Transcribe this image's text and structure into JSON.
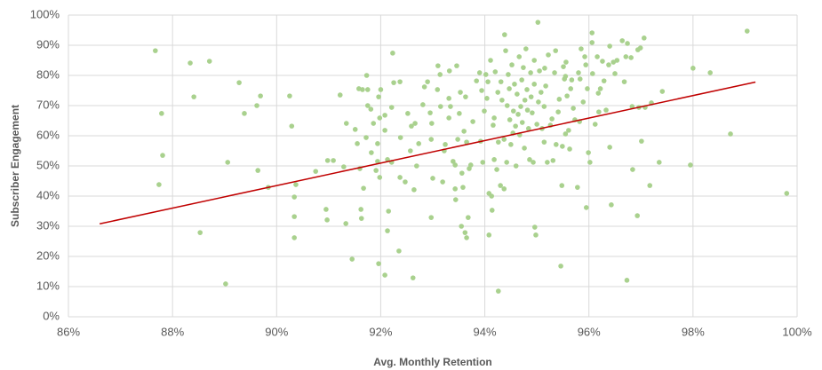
{
  "chart_data": {
    "type": "scatter",
    "x_label": "Avg. Monthly Retention",
    "y_label": "Subscriber Engagement",
    "color": "#a9d18e",
    "grid": true,
    "xlim": [
      86,
      100
    ],
    "ylim": [
      0,
      100
    ],
    "xticks": [
      {
        "value": 86,
        "label": "86%"
      },
      {
        "value": 88,
        "label": "88%"
      },
      {
        "value": 90,
        "label": "90%"
      },
      {
        "value": 92,
        "label": "92%"
      },
      {
        "value": 94,
        "label": "94%"
      },
      {
        "value": 96,
        "label": "96%"
      },
      {
        "value": 98,
        "label": "98%"
      },
      {
        "value": 100,
        "label": "100%"
      }
    ],
    "yticks": [
      {
        "value": 0,
        "label": "0%"
      },
      {
        "value": 10,
        "label": "10%"
      },
      {
        "value": 20,
        "label": "20%"
      },
      {
        "value": 30,
        "label": "30%"
      },
      {
        "value": 40,
        "label": "40%"
      },
      {
        "value": 50,
        "label": "50%"
      },
      {
        "value": 60,
        "label": "60%"
      },
      {
        "value": 70,
        "label": "70%"
      },
      {
        "value": 80,
        "label": "80%"
      },
      {
        "value": 90,
        "label": "90%"
      },
      {
        "value": 100,
        "label": "100%"
      }
    ],
    "trendline": {
      "color": "#c00000",
      "x": [
        86.6,
        99.2
      ],
      "y": [
        30.8,
        77.8
      ]
    },
    "x": [
      87.67,
      87.79,
      87.81,
      87.74,
      88.34,
      88.41,
      88.71,
      88.53,
      89.02,
      89.06,
      89.28,
      89.38,
      89.62,
      89.69,
      89.64,
      89.84,
      90.25,
      90.29,
      90.37,
      90.34,
      90.34,
      90.34,
      90.75,
      90.95,
      90.97,
      90.98,
      91.09,
      91.22,
      91.29,
      91.34,
      91.33,
      91.45,
      91.51,
      91.55,
      91.58,
      91.62,
      91.6,
      91.63,
      91.67,
      91.65,
      91.72,
      91.73,
      91.75,
      91.75,
      91.81,
      91.82,
      91.86,
      91.94,
      91.94,
      91.96,
      91.98,
      91.91,
      91.98,
      92.0,
      91.96,
      92.08,
      92.13,
      92.13,
      92.15,
      92.08,
      92.08,
      92.21,
      92.21,
      92.25,
      92.23,
      92.35,
      92.37,
      92.38,
      92.37,
      92.47,
      92.52,
      92.57,
      92.59,
      92.62,
      92.64,
      92.66,
      92.69,
      92.73,
      92.81,
      92.84,
      92.9,
      92.97,
      92.95,
      92.97,
      92.98,
      93.0,
      93.09,
      93.1,
      93.14,
      93.15,
      93.19,
      93.22,
      93.24,
      93.31,
      93.31,
      93.32,
      93.34,
      93.39,
      93.43,
      93.43,
      93.44,
      93.46,
      93.48,
      93.51,
      93.53,
      93.55,
      93.56,
      93.58,
      93.6,
      93.62,
      93.63,
      93.65,
      93.65,
      93.68,
      93.7,
      93.73,
      93.77,
      93.84,
      93.9,
      93.92,
      93.94,
      93.96,
      93.99,
      94.02,
      94.04,
      94.06,
      94.08,
      94.08,
      94.11,
      94.14,
      94.13,
      94.16,
      94.18,
      94.2,
      94.18,
      94.23,
      94.25,
      94.26,
      94.26,
      94.3,
      94.31,
      94.33,
      94.37,
      94.37,
      94.38,
      94.4,
      94.42,
      94.43,
      94.45,
      94.47,
      94.48,
      94.5,
      94.52,
      94.54,
      94.55,
      94.57,
      94.59,
      94.6,
      94.62,
      94.64,
      94.66,
      94.67,
      94.69,
      94.71,
      94.72,
      94.74,
      94.76,
      94.77,
      94.79,
      94.81,
      94.82,
      94.84,
      94.86,
      94.88,
      94.89,
      94.91,
      94.93,
      94.95,
      94.95,
      94.96,
      94.98,
      95.0,
      95.02,
      95.03,
      95.05,
      95.08,
      95.1,
      95.14,
      95.14,
      95.15,
      95.17,
      95.2,
      95.22,
      95.26,
      95.29,
      95.31,
      95.34,
      95.36,
      95.37,
      95.41,
      95.43,
      95.46,
      95.48,
      95.49,
      95.51,
      95.53,
      95.55,
      95.55,
      95.56,
      95.58,
      95.61,
      95.63,
      95.65,
      95.67,
      95.7,
      95.73,
      95.78,
      95.8,
      95.82,
      95.83,
      95.85,
      95.89,
      95.92,
      95.94,
      95.95,
      95.97,
      95.99,
      96.02,
      96.06,
      96.06,
      96.07,
      96.12,
      96.16,
      96.18,
      96.19,
      96.22,
      96.26,
      96.29,
      96.33,
      96.38,
      96.4,
      96.4,
      96.43,
      96.47,
      96.5,
      96.54,
      96.64,
      96.68,
      96.71,
      96.73,
      96.74,
      96.81,
      96.83,
      96.84,
      96.93,
      96.94,
      96.96,
      96.99,
      97.01,
      97.06,
      97.08,
      97.17,
      97.2,
      97.35,
      97.41,
      97.95,
      98.0,
      98.33,
      98.72,
      99.04,
      99.8
    ],
    "values": [
      88.2,
      67.4,
      53.5,
      43.8,
      84.1,
      72.9,
      84.7,
      27.9,
      10.9,
      51.2,
      77.6,
      67.4,
      70.0,
      73.2,
      48.5,
      42.9,
      73.2,
      63.2,
      43.8,
      39.7,
      33.2,
      26.2,
      48.2,
      35.6,
      32.1,
      51.8,
      51.8,
      73.5,
      49.7,
      64.1,
      30.9,
      19.1,
      62.1,
      57.4,
      75.6,
      35.6,
      49.1,
      32.6,
      42.6,
      75.3,
      59.4,
      80.0,
      75.3,
      70.0,
      68.8,
      54.4,
      64.1,
      51.5,
      57.4,
      72.9,
      65.9,
      48.5,
      46.2,
      75.3,
      17.6,
      13.8,
      52.1,
      28.5,
      35.0,
      66.8,
      61.8,
      69.4,
      51.2,
      77.6,
      87.4,
      21.8,
      46.2,
      59.4,
      77.9,
      44.7,
      67.4,
      55.0,
      63.2,
      12.9,
      42.1,
      64.1,
      50.0,
      57.4,
      70.3,
      76.2,
      77.9,
      58.8,
      67.6,
      32.9,
      64.1,
      45.9,
      75.3,
      83.2,
      80.3,
      69.7,
      44.7,
      55.0,
      57.1,
      65.9,
      72.4,
      81.5,
      69.7,
      51.5,
      50.3,
      42.4,
      38.8,
      83.2,
      58.8,
      67.4,
      74.4,
      30.0,
      47.6,
      42.9,
      61.5,
      27.9,
      72.9,
      26.2,
      57.9,
      32.9,
      49.1,
      50.3,
      64.7,
      78.2,
      80.9,
      58.2,
      75.0,
      51.2,
      68.2,
      80.3,
      72.4,
      77.9,
      27.1,
      40.9,
      85.0,
      35.3,
      40.0,
      63.5,
      65.9,
      81.2,
      52.1,
      48.8,
      74.4,
      8.5,
      57.9,
      43.5,
      77.9,
      71.8,
      42.4,
      58.8,
      93.5,
      88.2,
      51.2,
      70.0,
      80.3,
      75.6,
      65.3,
      57.1,
      83.5,
      60.9,
      68.2,
      77.1,
      63.2,
      50.0,
      73.8,
      67.1,
      86.2,
      60.3,
      69.7,
      78.5,
      64.4,
      82.6,
      55.9,
      71.8,
      88.8,
      75.3,
      68.5,
      62.4,
      52.1,
      80.9,
      72.9,
      67.6,
      51.2,
      85.0,
      77.1,
      29.7,
      27.1,
      63.8,
      97.6,
      71.2,
      81.5,
      74.4,
      62.4,
      57.9,
      69.7,
      82.4,
      76.5,
      51.2,
      86.8,
      63.5,
      65.6,
      51.8,
      80.9,
      88.2,
      57.1,
      67.9,
      72.1,
      16.8,
      43.5,
      56.5,
      82.9,
      78.8,
      79.7,
      60.6,
      84.4,
      73.2,
      61.8,
      55.6,
      75.6,
      78.5,
      69.1,
      65.3,
      42.9,
      80.9,
      64.7,
      78.8,
      88.8,
      71.2,
      86.2,
      83.5,
      36.2,
      75.6,
      54.4,
      51.2,
      94.1,
      90.9,
      80.6,
      63.8,
      86.2,
      74.1,
      67.9,
      75.6,
      84.7,
      78.2,
      68.5,
      83.5,
      56.2,
      89.7,
      37.1,
      84.4,
      80.6,
      85.0,
      91.5,
      77.9,
      86.2,
      12.1,
      90.6,
      85.9,
      69.7,
      48.8,
      33.5,
      88.5,
      69.4,
      89.1,
      58.2,
      92.4,
      69.4,
      43.5,
      70.9,
      51.2,
      74.7,
      50.3,
      82.4,
      80.9,
      60.6,
      94.7,
      40.9
    ]
  }
}
